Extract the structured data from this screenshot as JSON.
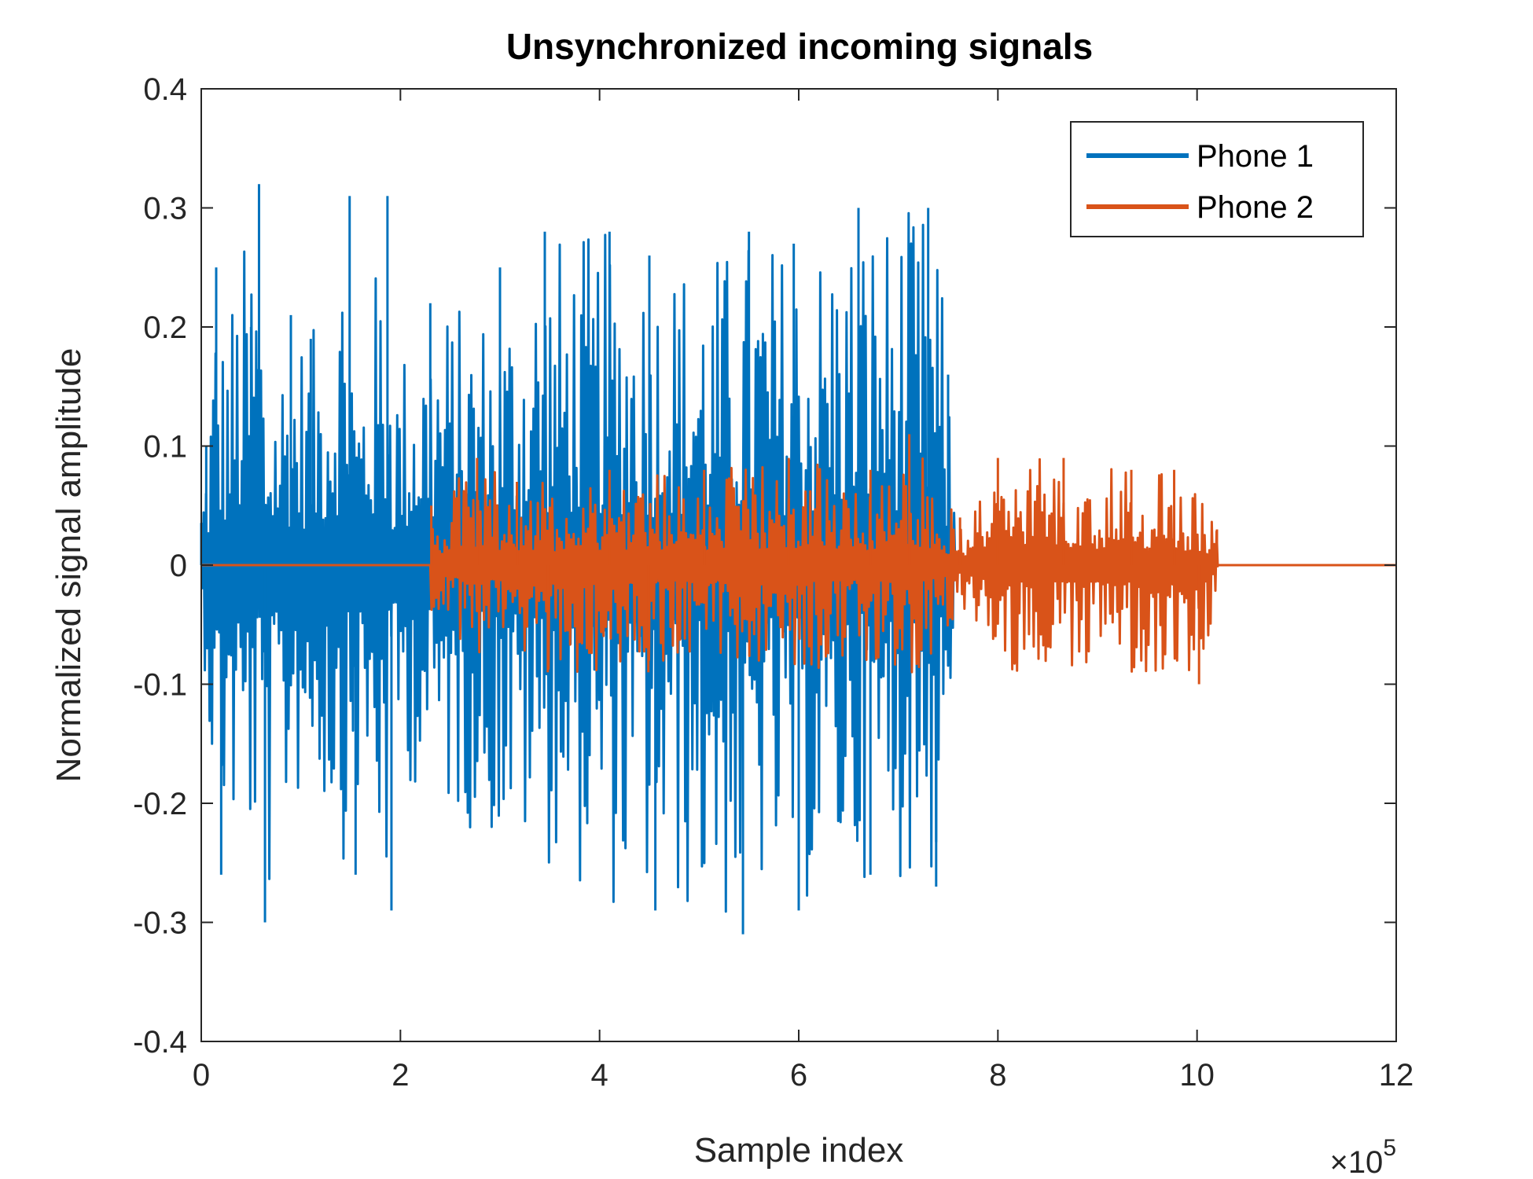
{
  "chart_data": {
    "type": "line",
    "title": "Unsynchronized incoming signals",
    "xlabel": "Sample index",
    "ylabel": "Normalized signal amplitude",
    "x_exponent_label": "×10",
    "x_exponent": "5",
    "xlim": [
      0,
      12
    ],
    "ylim": [
      -0.4,
      0.4
    ],
    "xticks": [
      "0",
      "2",
      "4",
      "6",
      "8",
      "10",
      "12"
    ],
    "yticks": [
      "-0.4",
      "-0.3",
      "-0.2",
      "-0.1",
      "0",
      "0.1",
      "0.2",
      "0.3",
      "0.4"
    ],
    "legend_position": "top-right",
    "grid": false,
    "series": [
      {
        "name": "Phone 1",
        "color": "#0072BD",
        "x": [
          0,
          0.05,
          0.15,
          0.2,
          0.5,
          0.58,
          0.64,
          0.9,
          1.1,
          1.49,
          1.55,
          1.87,
          1.91,
          2.3,
          3.0,
          3.45,
          4.1,
          4.5,
          4.56,
          5.44,
          5.5,
          5.95,
          6.0,
          6.6,
          6.72,
          7.3,
          7.38,
          7.5,
          7.6,
          7.62,
          12
        ],
        "y": [
          0,
          0.1,
          0.25,
          -0.26,
          0.2,
          0.32,
          -0.3,
          0.21,
          0.19,
          0.31,
          -0.26,
          0.31,
          -0.29,
          0.22,
          0.25,
          0.28,
          0.28,
          0.26,
          -0.29,
          -0.31,
          0.28,
          0.27,
          -0.29,
          0.3,
          -0.26,
          0.3,
          -0.27,
          0.16,
          0.0,
          0.0,
          0.0
        ],
        "envelope": {
          "x": [
            0,
            0.05,
            0.15,
            0.2,
            0.58,
            0.64,
            0.9,
            1.1,
            1.49,
            1.55,
            1.87,
            1.91,
            2.3,
            3.0,
            3.45,
            4.1,
            4.56,
            5.44,
            5.5,
            6.0,
            6.72,
            7.38,
            7.5,
            7.6
          ],
          "upper": [
            0.06,
            0.1,
            0.25,
            0.2,
            0.32,
            0.15,
            0.21,
            0.19,
            0.31,
            0.15,
            0.31,
            0.17,
            0.22,
            0.22,
            0.28,
            0.28,
            0.26,
            0.27,
            0.28,
            0.27,
            0.3,
            0.3,
            0.16,
            0.0
          ],
          "lower": [
            -0.06,
            -0.1,
            -0.26,
            -0.23,
            -0.25,
            -0.3,
            -0.21,
            -0.18,
            -0.26,
            -0.2,
            -0.29,
            -0.17,
            -0.2,
            -0.24,
            -0.25,
            -0.29,
            -0.29,
            -0.31,
            -0.28,
            -0.29,
            -0.26,
            -0.27,
            -0.14,
            0.0
          ]
        }
      },
      {
        "name": "Phone 2",
        "color": "#D95319",
        "x": [
          0,
          2.3,
          2.31,
          2.77,
          3.17,
          3.48,
          4.1,
          4.49,
          5.05,
          5.9,
          6.72,
          7.11,
          7.62,
          8.0,
          8.66,
          9.34,
          9.77,
          10.02,
          10.2,
          10.21,
          12
        ],
        "y": [
          0,
          0,
          0.05,
          0.09,
          0.07,
          -0.09,
          0.08,
          -0.09,
          0.08,
          0.09,
          0.08,
          0.11,
          0.04,
          0.09,
          0.09,
          0.08,
          0.08,
          -0.1,
          0.03,
          0,
          0
        ],
        "envelope": {
          "x": [
            2.3,
            2.31,
            2.77,
            3.17,
            3.48,
            4.1,
            4.49,
            5.05,
            5.9,
            6.72,
            7.11,
            7.62,
            8.0,
            8.66,
            9.34,
            9.77,
            10.02,
            10.2,
            10.21
          ],
          "upper": [
            0.0,
            0.05,
            0.09,
            0.07,
            0.07,
            0.08,
            0.08,
            0.08,
            0.09,
            0.08,
            0.11,
            0.04,
            0.09,
            0.09,
            0.08,
            0.08,
            0.07,
            0.03,
            0.0
          ],
          "lower": [
            0.0,
            -0.05,
            -0.08,
            -0.07,
            -0.09,
            -0.09,
            -0.09,
            -0.07,
            -0.09,
            -0.08,
            -0.1,
            -0.04,
            -0.09,
            -0.09,
            -0.09,
            -0.09,
            -0.1,
            -0.03,
            0.0
          ]
        }
      }
    ]
  }
}
